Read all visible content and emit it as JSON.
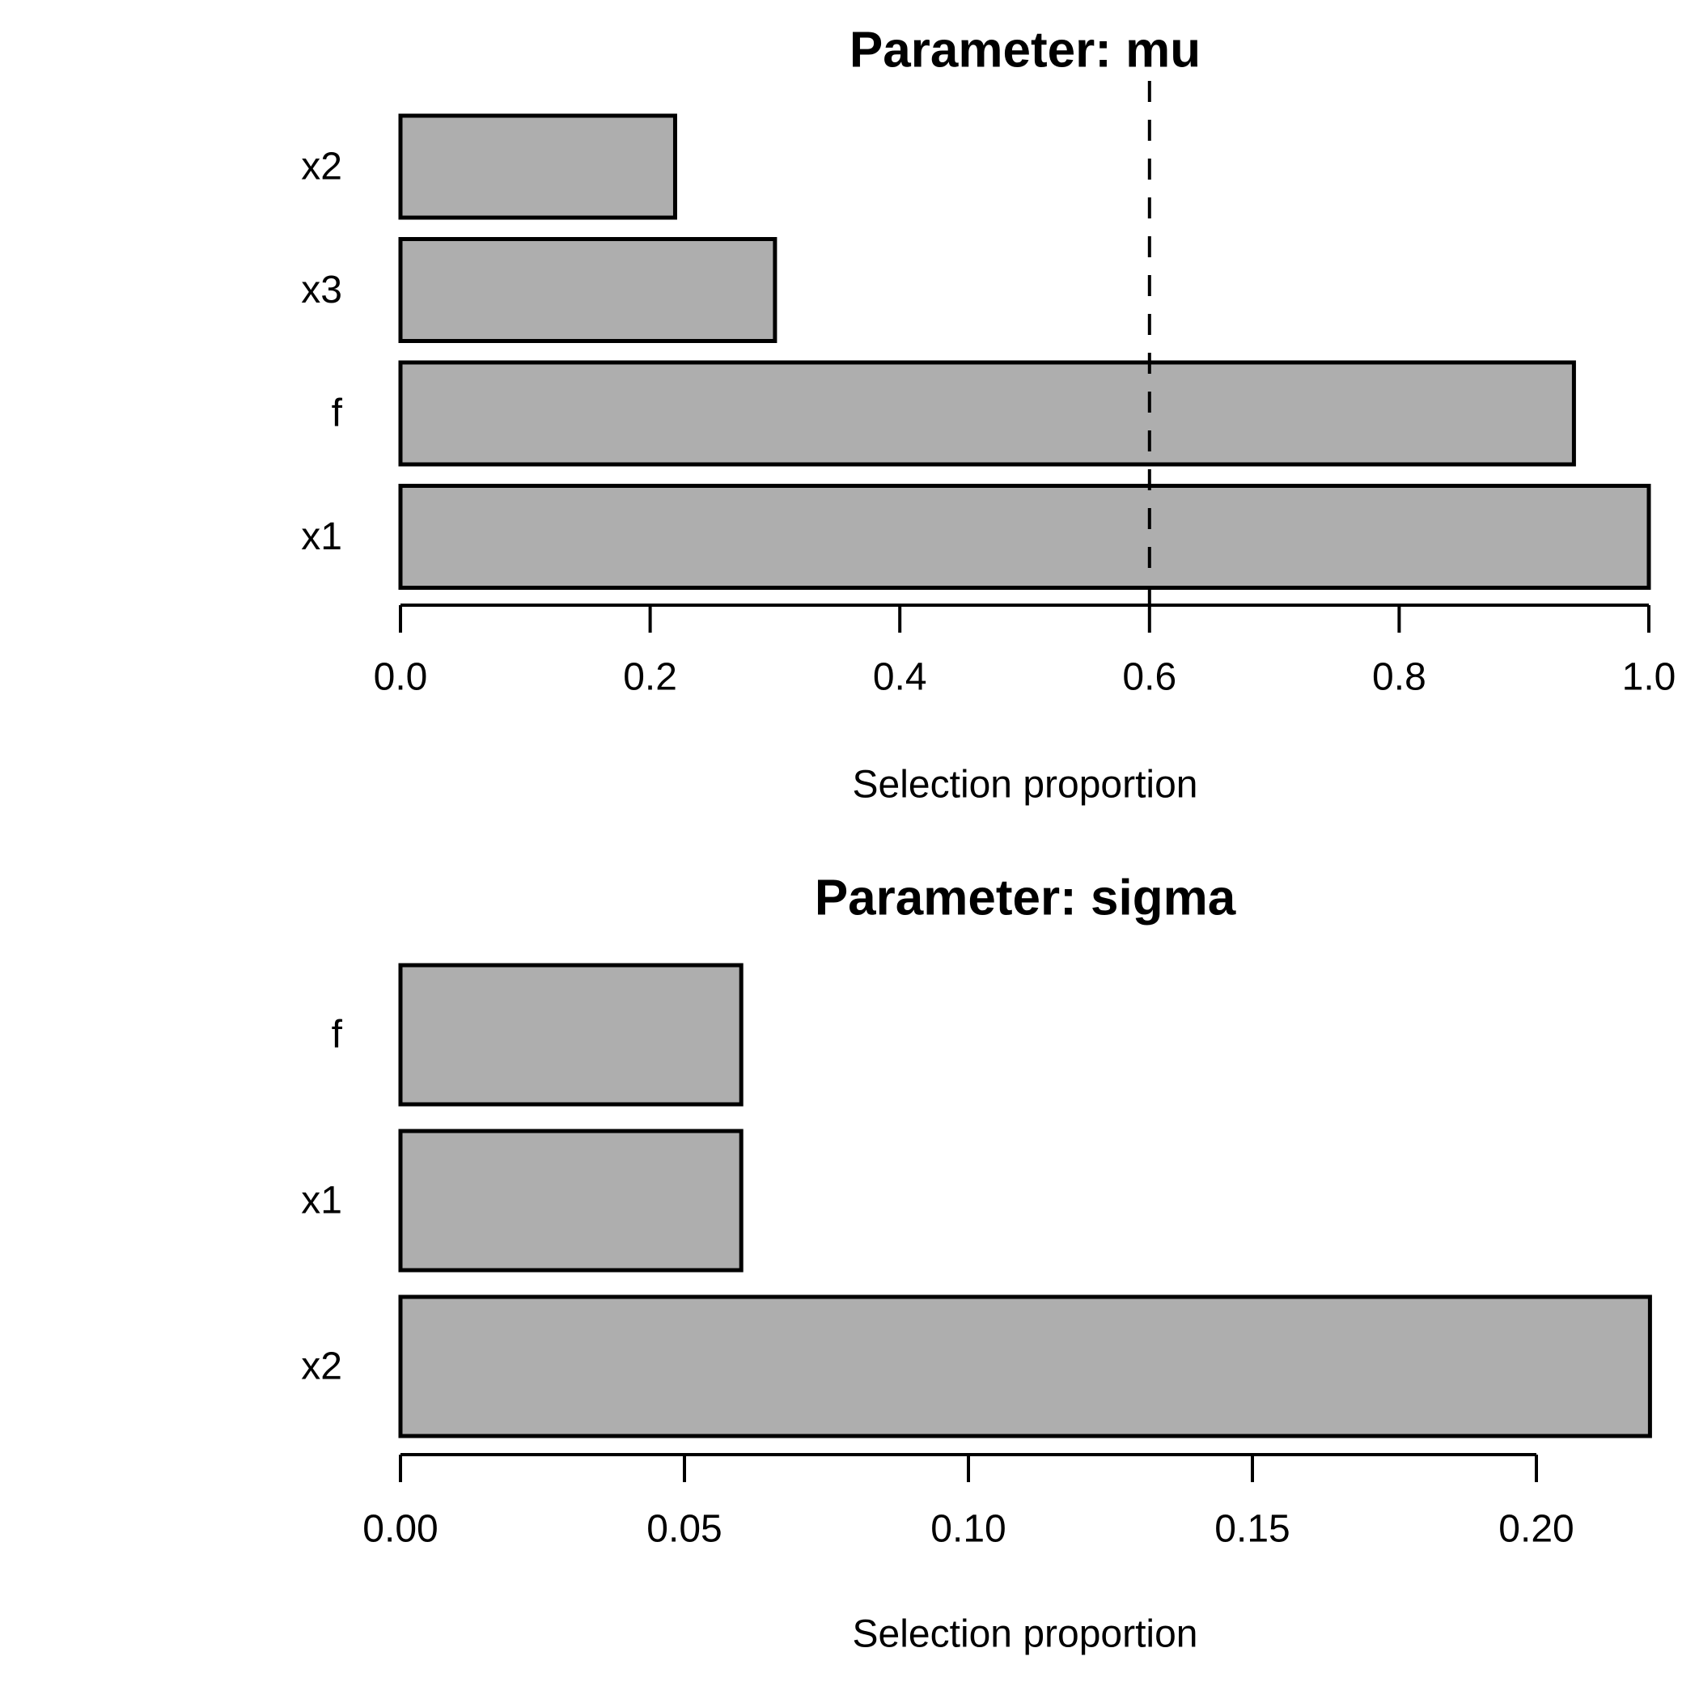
{
  "page": {
    "background": "#ffffff"
  },
  "chart_data": [
    {
      "type": "bar",
      "orientation": "horizontal",
      "title": "Parameter: mu",
      "categories": [
        "x2",
        "x3",
        "f",
        "x1"
      ],
      "values": [
        0.22,
        0.3,
        0.94,
        1.0
      ],
      "xlabel": "Selection proportion",
      "xlim": [
        0,
        1.0
      ],
      "xticks": [
        0.0,
        0.2,
        0.4,
        0.6,
        0.8,
        1.0
      ],
      "xtick_labels": [
        "0.0",
        "0.2",
        "0.4",
        "0.6",
        "0.8",
        "1.0"
      ],
      "threshold_line": 0.6,
      "threshold_style": "dashed",
      "grid": "off",
      "legend": "none",
      "bar_fill": "#aeaeae",
      "bar_border": "#000000",
      "threshold_color": "#000000"
    },
    {
      "type": "bar",
      "orientation": "horizontal",
      "title": "Parameter: sigma",
      "categories": [
        "f",
        "x1",
        "x2"
      ],
      "values": [
        0.06,
        0.06,
        0.22
      ],
      "xlabel": "Selection proportion",
      "xlim": [
        0,
        0.22
      ],
      "xticks": [
        0.0,
        0.05,
        0.1,
        0.15,
        0.2
      ],
      "xtick_labels": [
        "0.00",
        "0.05",
        "0.10",
        "0.15",
        "0.20"
      ],
      "threshold_line": null,
      "threshold_style": "none",
      "grid": "off",
      "legend": "none",
      "bar_fill": "#aeaeae",
      "bar_border": "#000000",
      "threshold_color": "#000000"
    }
  ]
}
